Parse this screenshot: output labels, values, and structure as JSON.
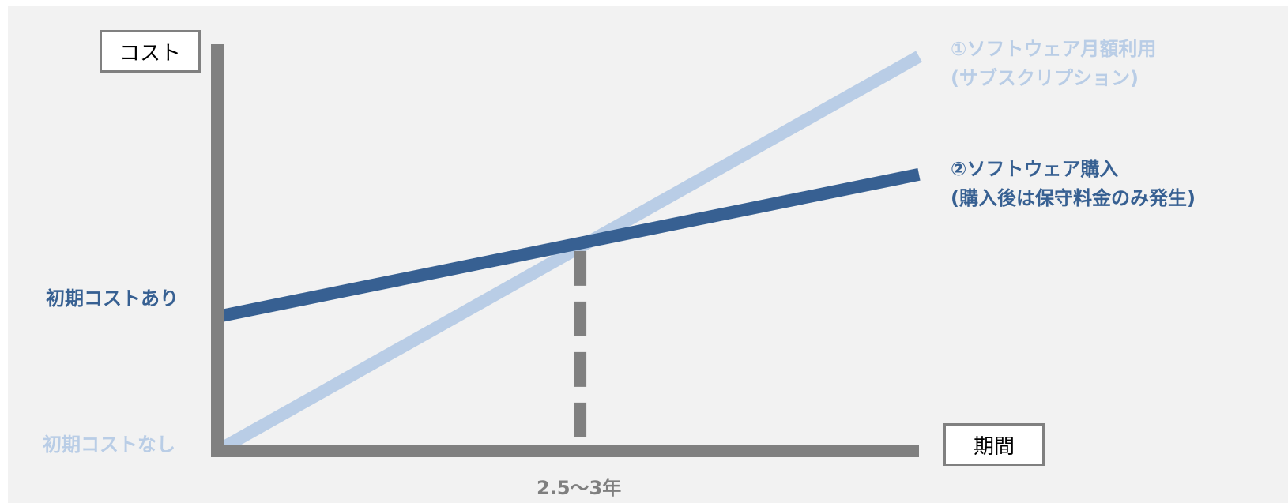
{
  "chart_data": {
    "type": "line",
    "title": "",
    "ylabel": "コスト",
    "xlabel": "期間",
    "x_marker_label": "2.5〜3年",
    "y_labels": {
      "initial_cost_yes": "初期コストあり",
      "initial_cost_no": "初期コストなし"
    },
    "x": [
      0,
      1
    ],
    "ylim": [
      0,
      1
    ],
    "crossover_x": 0.517,
    "series": [
      {
        "name": "①ソフトウェア月額利用",
        "name_line2": "(サブスクリプション)",
        "color": "#b9cde6",
        "values": [
          0,
          0.97
        ]
      },
      {
        "name": "②ソフトウェア購入",
        "name_line2": "(購入後は保守料金のみ発生)",
        "color": "#376092",
        "values": [
          0.33,
          0.68
        ]
      }
    ],
    "axis_color": "#808080",
    "grid": false
  }
}
